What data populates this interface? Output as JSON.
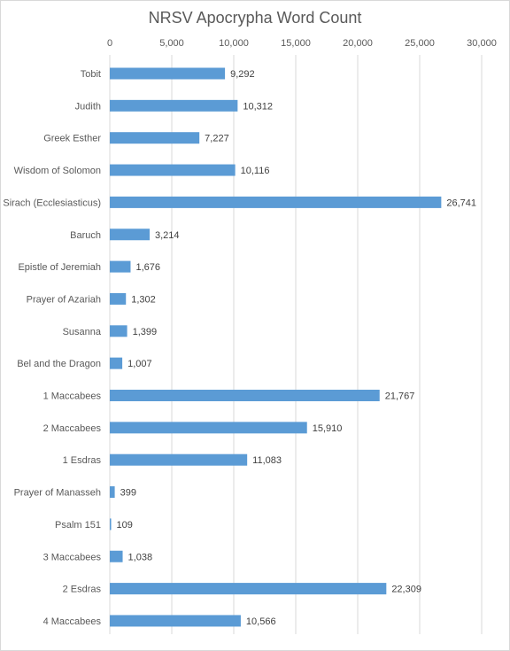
{
  "chart_data": {
    "type": "bar",
    "orientation": "horizontal",
    "title": "NRSV Apocrypha Word Count",
    "xlabel": "",
    "ylabel": "",
    "xlim": [
      0,
      30000
    ],
    "ticks": [
      "0",
      "5,000",
      "10,000",
      "15,000",
      "20,000",
      "25,000",
      "30,000"
    ],
    "tick_values": [
      0,
      5000,
      10000,
      15000,
      20000,
      25000,
      30000
    ],
    "grid": true,
    "axis_position": "top",
    "legend": "none",
    "bar_color": "#5b9bd5",
    "categories": [
      "Tobit",
      "Judith",
      "Greek Esther",
      "Wisdom of Solomon",
      "Sirach (Ecclesiasticus)",
      "Baruch",
      "Epistle of Jeremiah",
      "Prayer of Azariah",
      "Susanna",
      "Bel and the Dragon",
      "1 Maccabees",
      "2 Maccabees",
      "1 Esdras",
      "Prayer of Manasseh",
      "Psalm 151",
      "3 Maccabees",
      "2 Esdras",
      "4 Maccabees"
    ],
    "values": [
      9292,
      10312,
      7227,
      10116,
      26741,
      3214,
      1676,
      1302,
      1399,
      1007,
      21767,
      15910,
      11083,
      399,
      109,
      1038,
      22309,
      10566
    ],
    "data_labels": [
      "9,292",
      "10,312",
      "7,227",
      "10,116",
      "26,741",
      "3,214",
      "1,676",
      "1,302",
      "1,399",
      "1,007",
      "21,767",
      "15,910",
      "11,083",
      "399",
      "109",
      "1,038",
      "22,309",
      "10,566"
    ]
  }
}
